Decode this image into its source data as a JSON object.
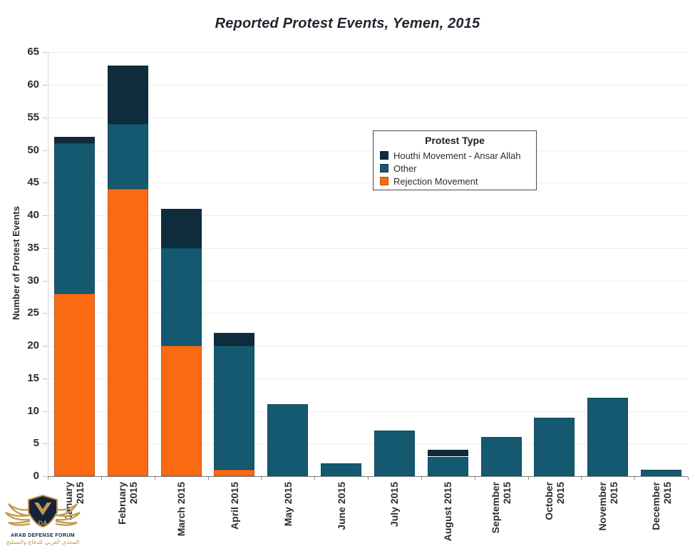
{
  "title": "Reported Protest Events, Yemen, 2015",
  "y_axis": {
    "label": "Number of Protest Events"
  },
  "legend": {
    "title": "Protest Type"
  },
  "chart_data": {
    "type": "bar",
    "stacked": true,
    "title": "Reported Protest Events, Yemen, 2015",
    "xlabel": "",
    "ylabel": "Number of Protest Events",
    "ylim": [
      0,
      65
    ],
    "ytick_step": 5,
    "yticks": [
      0,
      5,
      10,
      15,
      20,
      25,
      30,
      35,
      40,
      45,
      50,
      55,
      60,
      65
    ],
    "grid": true,
    "legend_title": "Protest Type",
    "legend_position": "upper-right-inside",
    "categories": [
      "January 2015",
      "February 2015",
      "March 2015",
      "April 2015",
      "May 2015",
      "June 2015",
      "July 2015",
      "August 2015",
      "September 2015",
      "October 2015",
      "November 2015",
      "December 2015"
    ],
    "category_label_lines": [
      [
        "January",
        "2015"
      ],
      [
        "February",
        "2015"
      ],
      [
        "March 2015"
      ],
      [
        "April 2015"
      ],
      [
        "May 2015"
      ],
      [
        "June 2015"
      ],
      [
        "July 2015"
      ],
      [
        "August 2015"
      ],
      [
        "September",
        "2015"
      ],
      [
        "October",
        "2015"
      ],
      [
        "November",
        "2015"
      ],
      [
        "December",
        "2015"
      ]
    ],
    "series": [
      {
        "name": "Rejection Movement",
        "color": "#FA6A13",
        "values": [
          28,
          44,
          20,
          1,
          0,
          0,
          0,
          0,
          0,
          0,
          0,
          0
        ]
      },
      {
        "name": "Other",
        "color": "#14596F",
        "values": [
          23,
          10,
          15,
          19,
          11,
          2,
          7,
          3,
          6,
          9,
          12,
          1
        ]
      },
      {
        "name": "Houthi Movement - Ansar Allah",
        "color": "#0E2C3B",
        "values": [
          1,
          9,
          6,
          2,
          0,
          0,
          0,
          1,
          0,
          0,
          0,
          0
        ]
      }
    ],
    "totals": [
      52,
      63,
      41,
      22,
      11,
      2,
      7,
      4,
      6,
      9,
      12,
      1
    ]
  },
  "watermark": {
    "monogram": "DA",
    "line1": "ARAB DEFENSE FORUM",
    "line2": "المنتدى العربي للدفاع والتسليح"
  },
  "colors": {
    "houthi": "#0E2C3B",
    "other": "#14596F",
    "rejection": "#FA6A13",
    "gridline": "#ececec",
    "axis": "#7a7a7a",
    "gold": "#c2994e",
    "navy": "#15223a"
  }
}
